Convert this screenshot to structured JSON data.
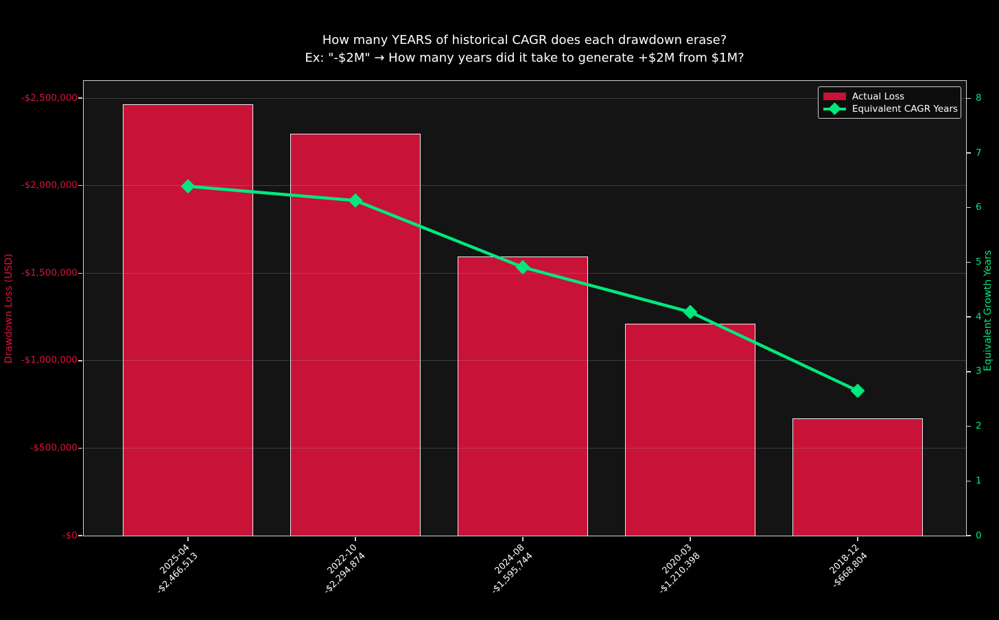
{
  "chart_data": {
    "type": "bar",
    "title": "How many YEARS of historical CAGR does each drawdown erase?",
    "subtitle": "Ex: \"-$2M\" → How many years did it take to generate +$2M from $1M?",
    "categories": [
      "2025-04",
      "2022-10",
      "2024-08",
      "2020-03",
      "2018-12"
    ],
    "series": [
      {
        "name": "Actual Loss",
        "type": "bar",
        "axis": "left",
        "values": [
          2466513,
          2294874,
          1595744,
          1210398,
          668804
        ],
        "value_labels": [
          "-$2,466,513",
          "-$2,294,874",
          "-$1,595,744",
          "-$1,210,398",
          "-$668,804"
        ]
      },
      {
        "name": "Equivalent CAGR Years",
        "type": "line",
        "axis": "right",
        "values": [
          6.39,
          6.13,
          4.91,
          4.09,
          2.65
        ]
      }
    ],
    "left_axis": {
      "label": "Drawdown Loss (USD)",
      "tick_values": [
        0,
        500000,
        1000000,
        1500000,
        2000000,
        2500000
      ],
      "tick_labels": [
        "-$0",
        "-$500,000",
        "-$1,000,000",
        "-$1,500,000",
        "-$2,000,000",
        "-$2,500,000"
      ],
      "range": [
        0,
        2602000
      ]
    },
    "right_axis": {
      "label": "Equivalent Growth Years",
      "tick_values": [
        0,
        1,
        2,
        3,
        4,
        5,
        6,
        7,
        8
      ],
      "tick_labels": [
        "0",
        "1",
        "2",
        "3",
        "4",
        "5",
        "6",
        "7",
        "8"
      ],
      "range": [
        0,
        8.33
      ]
    },
    "legend": {
      "position": "upper right",
      "items": [
        {
          "label": "Actual Loss",
          "marker": "bar-swatch"
        },
        {
          "label": "Equivalent CAGR Years",
          "marker": "line-diamond-swatch"
        }
      ]
    },
    "grid": "horizontal",
    "colors": {
      "figure_background": "#000000",
      "plot_background": "#141414",
      "bar_fill": "#c91238",
      "bar_edge": "#ededed",
      "line": "#00e97e",
      "left_axis_text": "#dc143c",
      "right_axis_text": "#00e97e",
      "title_text": "#ffffff",
      "spine": "#d4d4d4"
    }
  }
}
